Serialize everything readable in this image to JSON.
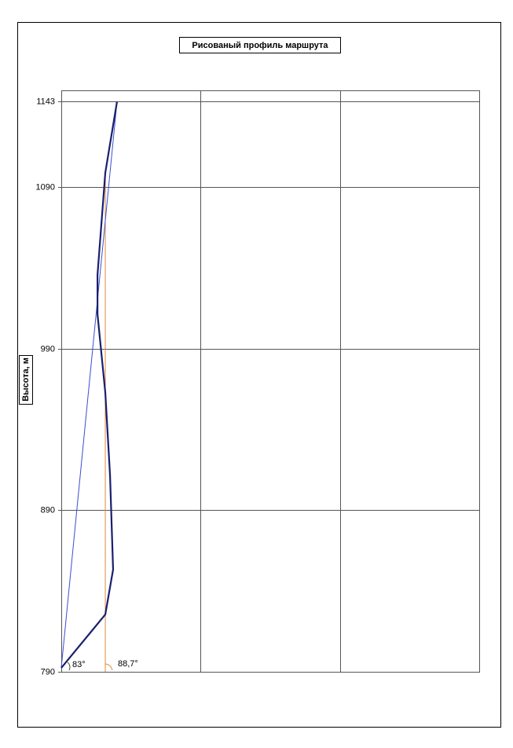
{
  "chart_data": {
    "type": "line",
    "title": "Рисованый профиль маршрута",
    "y_label": "Высота, м",
    "xlim": [
      0,
      3
    ],
    "xticks": [
      0,
      1,
      2,
      3
    ],
    "ylim": [
      790,
      1150
    ],
    "yticks": [
      790,
      890,
      990,
      1090,
      1143
    ],
    "grid": true,
    "series": [
      {
        "color": "#1a1f6e",
        "x": [
          0,
          0.316,
          0.372,
          0.35,
          0.316,
          0.26,
          0.26,
          0.316,
          0.4
        ],
        "values": [
          792.4,
          825.5,
          853.3,
          911.7,
          962.8,
          1011.4,
          1035.7,
          1099,
          1143
        ]
      },
      {
        "color": "#3a4fd0",
        "x": [
          0,
          0.4
        ],
        "values": [
          792.4,
          1143
        ]
      },
      {
        "color": "#e08a3a",
        "x": [
          0.316,
          0.316
        ],
        "values": [
          790,
          1099
        ]
      }
    ],
    "annotations": [
      "83°",
      "88,7°"
    ]
  }
}
